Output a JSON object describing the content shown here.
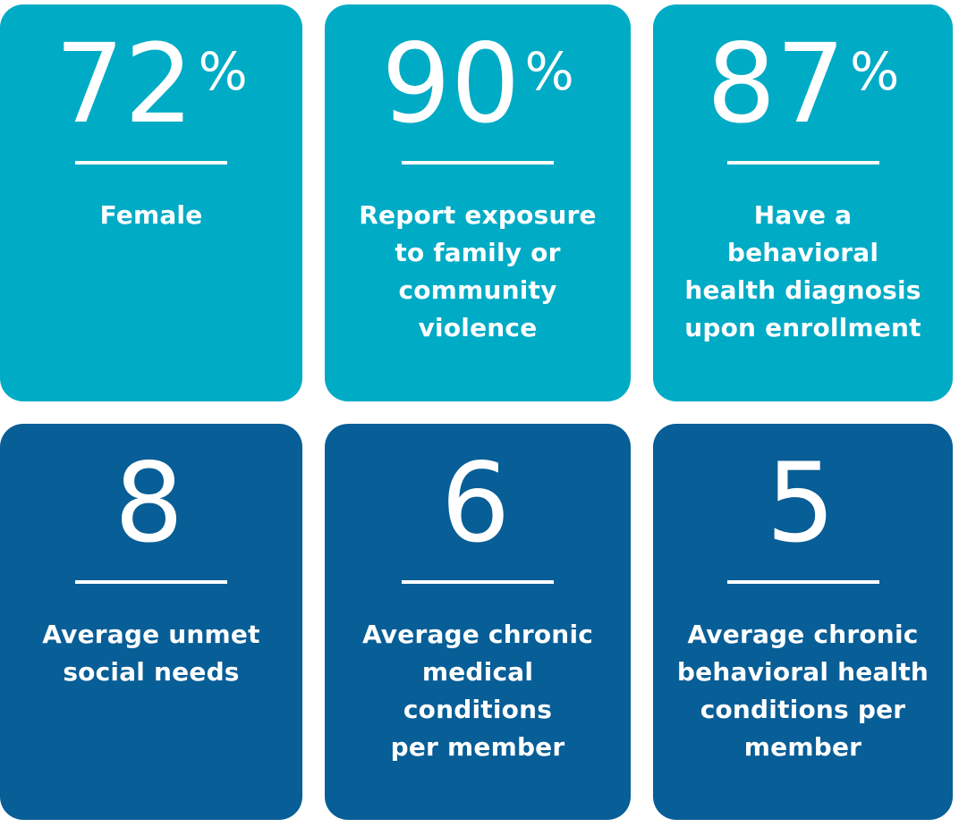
{
  "colors": {
    "teal": "#00abc5",
    "blue": "#085e96",
    "text": "#ffffff",
    "page_background": "#ffffff"
  },
  "cards": [
    {
      "id": "female",
      "value": "72",
      "suffix": "%",
      "label": "Female"
    },
    {
      "id": "violence-exposure",
      "value": "90",
      "suffix": "%",
      "label": "Report exposure\nto family or\ncommunity\nviolence"
    },
    {
      "id": "behavioral-diagnosis",
      "value": "87",
      "suffix": "%",
      "label": "Have a\nbehavioral\nhealth diagnosis\nupon enrollment"
    },
    {
      "id": "unmet-social-needs",
      "value": "8",
      "suffix": "",
      "label": "Average unmet\nsocial needs"
    },
    {
      "id": "chronic-medical",
      "value": "6",
      "suffix": "",
      "label": "Average chronic\nmedical\nconditions\nper member"
    },
    {
      "id": "chronic-behavioral",
      "value": "5",
      "suffix": "",
      "label": "Average chronic\nbehavioral health\nconditions per\nmember"
    }
  ],
  "chart_data": {
    "type": "table",
    "title": "",
    "stats": [
      {
        "value": 72,
        "unit": "%",
        "label": "Female"
      },
      {
        "value": 90,
        "unit": "%",
        "label": "Report exposure to family or community violence"
      },
      {
        "value": 87,
        "unit": "%",
        "label": "Have a behavioral health diagnosis upon enrollment"
      },
      {
        "value": 8,
        "unit": "",
        "label": "Average unmet social needs"
      },
      {
        "value": 6,
        "unit": "",
        "label": "Average chronic medical conditions per member"
      },
      {
        "value": 5,
        "unit": "",
        "label": "Average chronic behavioral health conditions per member"
      }
    ]
  }
}
